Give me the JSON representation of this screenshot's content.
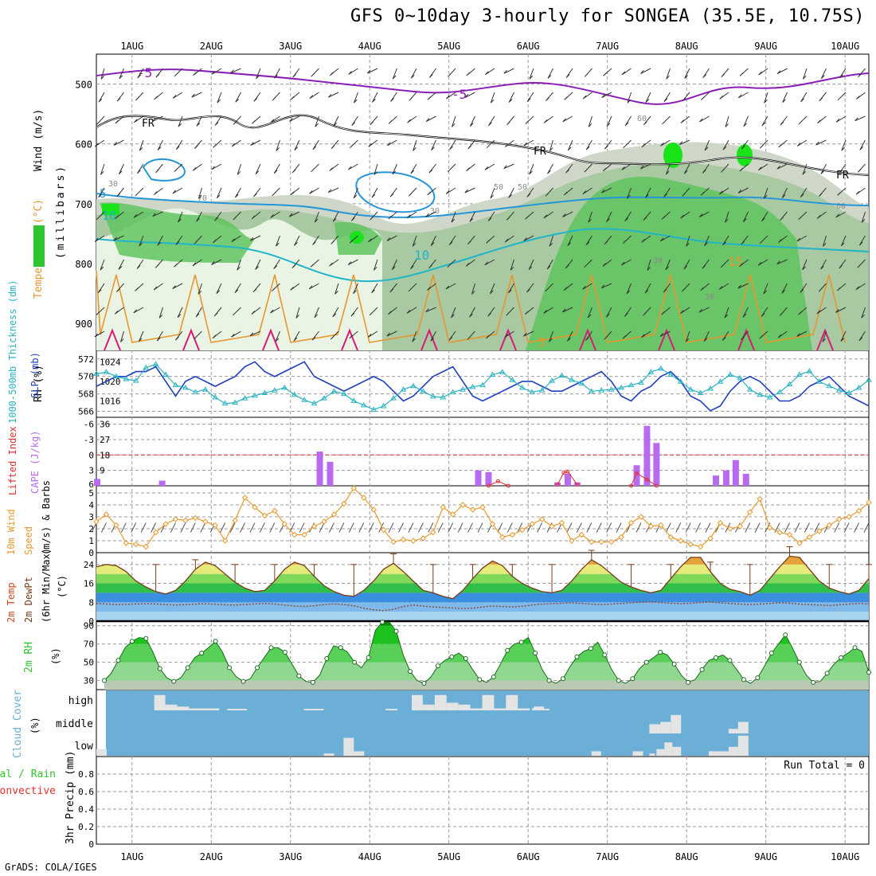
{
  "title": "GFS 0~10day 3-hourly for SONGEA (35.5E, 10.75S)",
  "credit": "GrADS: COLA/IGES",
  "colors": {
    "grid": "#9a9a9a",
    "slp": "#1f3fbf",
    "thickness": "#2ab3c2",
    "cape": "#b86bf0",
    "lifted_index": "#e23030",
    "wind_speed": "#e89a30",
    "rh_fill": "#31c431",
    "cloud_bg": "#6baed6",
    "cloud_bar": "#e4e4e4",
    "freezing": "#000000",
    "temp_purple": "#8a1fb8",
    "temp_blue": "#2596d8",
    "temp_cyan": "#20b5c9",
    "temp_orange": "#e8962e",
    "temp_magenta": "#d81b7a"
  },
  "chart_data": {
    "type": "meteogram",
    "x_range_days": [
      0.55,
      10.3
    ],
    "x_tick_labels": [
      "1AUG",
      "2AUG",
      "3AUG",
      "4AUG",
      "5AUG",
      "6AUG",
      "7AUG",
      "8AUG",
      "9AUG",
      "10AUG"
    ],
    "x_tick_days": [
      1,
      2,
      3,
      4,
      5,
      6,
      7,
      8,
      9,
      10
    ],
    "panels": {
      "upper_air": {
        "ylabel_parts": [
          "RH (%)",
          "Temperature (°C)",
          "Wind (m/s)"
        ],
        "ylabel_units": "(millibars)",
        "y_ticks": [
          500,
          600,
          700,
          800,
          900
        ],
        "y_range": [
          450,
          945
        ],
        "contour_labels": [
          "-5",
          "-5",
          "FR",
          "FR",
          "FR",
          "10",
          "10",
          "5",
          "15",
          "5"
        ],
        "rh_labels": [
          "30",
          "70",
          "50",
          "30",
          "50",
          "30",
          "60",
          "30",
          "60"
        ],
        "rh_levels_percent": [
          30,
          50,
          70,
          90
        ]
      },
      "thickness_slp": {
        "ylabel_left": "1000-500mb Thickness (dm)",
        "ylabel_right": "SLP (mb)",
        "left_ticks": [
          566,
          568,
          570,
          572
        ],
        "right_ticks": [
          1016,
          1020,
          1024
        ],
        "thickness_range": [
          565.5,
          572.8
        ],
        "slp_range": [
          1013,
          1026
        ],
        "thickness": [
          570.3,
          570.5,
          570.0,
          569.7,
          569.5,
          571.0,
          571.4,
          570.2,
          569.0,
          568.7,
          568.2,
          568.5,
          567.6,
          566.9,
          567.0,
          567.5,
          567.8,
          568.1,
          568.4,
          568.7,
          567.9,
          567.3,
          566.9,
          567.5,
          568.3,
          568.0,
          567.2,
          566.7,
          566.2,
          566.6,
          567.5,
          568.5,
          568.9,
          568.3,
          567.7,
          567.6,
          568.2,
          568.5,
          568.8,
          569.0,
          570.2,
          570.5,
          569.6,
          568.7,
          568.2,
          568.4,
          569.5,
          570.1,
          569.6,
          569.2,
          568.3,
          568.4,
          568.5,
          568.7,
          569.0,
          569.3,
          570.5,
          570.9,
          570.2,
          569.4,
          568.5,
          568.1,
          568.6,
          569.4,
          570.2,
          569.8,
          568.5,
          567.9,
          567.6,
          568.2,
          569.1,
          570.2,
          570.6,
          569.4,
          568.9,
          568.4,
          568.1,
          568.7,
          569.6,
          570.4,
          570.8,
          569.7,
          568.8,
          568.6,
          569.2,
          570.0,
          570.4,
          569.6,
          569.2,
          568.5
        ],
        "slp": [
          1019,
          1020,
          1021,
          1021,
          1022,
          1022,
          1023,
          1020,
          1017,
          1020,
          1021,
          1020,
          1019,
          1020,
          1021,
          1023,
          1024,
          1022,
          1021,
          1022,
          1023,
          1024,
          1021,
          1020,
          1019,
          1018,
          1019,
          1020,
          1021,
          1020,
          1018,
          1016,
          1017,
          1019,
          1021,
          1022,
          1023,
          1020,
          1017,
          1016,
          1017,
          1018,
          1019,
          1020,
          1020,
          1019,
          1018,
          1018,
          1019,
          1020,
          1021,
          1022,
          1020,
          1017,
          1016,
          1018,
          1019,
          1021,
          1022,
          1020,
          1017,
          1016,
          1014,
          1015,
          1018,
          1020,
          1021,
          1020,
          1018,
          1016,
          1016,
          1017,
          1019,
          1020,
          1021,
          1019,
          1017,
          1016,
          1015,
          1017,
          1019,
          1020,
          1021,
          1020,
          1018,
          1016,
          1017,
          1019,
          1020,
          1021
        ]
      },
      "cape_li": {
        "ylabel_left": "Lifted Index",
        "ylabel_right": "CAPE (J/kg)",
        "left_ticks": [
          6,
          3,
          0,
          -3,
          -6
        ],
        "right_ticks": [
          9,
          18,
          27,
          36
        ],
        "cape_range": [
          0,
          40
        ],
        "zero_li_cape_equiv": 18,
        "cape_bars": [
          {
            "day": 0.56,
            "value": 4
          },
          {
            "day": 1.38,
            "value": 3
          },
          {
            "day": 3.37,
            "value": 20
          },
          {
            "day": 3.5,
            "value": 14
          },
          {
            "day": 5.37,
            "value": 9
          },
          {
            "day": 5.5,
            "value": 8
          },
          {
            "day": 6.37,
            "value": 2
          },
          {
            "day": 6.5,
            "value": 7
          },
          {
            "day": 6.62,
            "value": 2
          },
          {
            "day": 7.37,
            "value": 12
          },
          {
            "day": 7.5,
            "value": 35
          },
          {
            "day": 7.62,
            "value": 25
          },
          {
            "day": 8.37,
            "value": 6
          },
          {
            "day": 8.5,
            "value": 9
          },
          {
            "day": 8.62,
            "value": 15
          },
          {
            "day": 8.75,
            "value": 7
          }
        ],
        "li_values": [
          {
            "day": 5.5,
            "value": 6.0
          },
          {
            "day": 5.62,
            "value": 5.2
          },
          {
            "day": 5.75,
            "value": 6.0
          },
          {
            "day": 6.37,
            "value": 5.8
          },
          {
            "day": 6.45,
            "value": 3.7
          },
          {
            "day": 6.5,
            "value": 3.5
          },
          {
            "day": 6.62,
            "value": 5.8
          },
          {
            "day": 7.3,
            "value": 6.0
          },
          {
            "day": 7.37,
            "value": 3.8
          },
          {
            "day": 7.5,
            "value": 4.9
          },
          {
            "day": 7.62,
            "value": 6.0
          }
        ]
      },
      "wind10m": {
        "ylabel": "10m Wind Speed (m/s) & Barbs",
        "ylabel_parts": [
          "10m Wind",
          "Speed",
          "(m/s) & Barbs"
        ],
        "y_ticks": [
          0,
          1,
          2,
          3,
          4,
          5
        ],
        "y_range": [
          0,
          5.6
        ],
        "speed": [
          2.6,
          3.2,
          2.3,
          0.8,
          0.7,
          0.5,
          1.7,
          2.4,
          2.8,
          2.7,
          2.9,
          2.6,
          2.3,
          1.0,
          2.7,
          4.6,
          3.8,
          3.1,
          3.5,
          2.4,
          1.5,
          1.5,
          2.2,
          2.6,
          3.2,
          4.1,
          5.4,
          4.6,
          3.6,
          1.9,
          0.9,
          1.1,
          1.0,
          1.2,
          1.7,
          3.8,
          3.2,
          4.0,
          3.6,
          3.8,
          2.4,
          1.3,
          1.5,
          1.9,
          2.4,
          2.8,
          2.2,
          2.5,
          1.0,
          1.5,
          0.9,
          0.9,
          0.9,
          1.3,
          2.5,
          3.0,
          2.2,
          2.3,
          1.3,
          1.0,
          0.7,
          0.5,
          1.2,
          2.5,
          2.0,
          2.2,
          3.4,
          4.5,
          2.1,
          1.7,
          1.5,
          0.8,
          1.3,
          1.8,
          2.3,
          2.8,
          3.0,
          3.5,
          4.2,
          3.0,
          2.2,
          1.6,
          1.4,
          2.0,
          1.9,
          2.2,
          1.6,
          1.9,
          2.2,
          2.3,
          2.5
        ]
      },
      "temp2m": {
        "ylabel_parts": [
          "2m Temp",
          "2m DewPt",
          "(6hr Min/Max)"
        ],
        "ylabel_units": "(°C)",
        "y_ticks": [
          0,
          8,
          16,
          24
        ],
        "y_range": [
          0,
          29
        ],
        "temp": [
          23,
          24,
          23.5,
          21,
          17,
          14.5,
          12.5,
          11.5,
          13,
          17,
          22,
          25,
          23.5,
          20,
          16.5,
          14,
          12.5,
          13,
          17,
          22,
          25,
          23.5,
          19,
          15,
          12.5,
          11,
          10.5,
          13,
          17,
          22,
          24.5,
          21,
          17,
          13,
          12,
          10.5,
          9.5,
          13,
          18,
          22.5,
          25.5,
          23.5,
          19,
          16,
          14,
          12.5,
          12,
          13,
          17,
          22,
          26,
          23.5,
          20,
          16.5,
          14.5,
          13,
          12,
          13,
          18,
          23,
          27,
          27,
          21,
          16,
          13.5,
          12.5,
          11,
          13,
          18,
          23,
          27.5,
          27,
          22,
          17,
          14,
          12.5,
          11.5,
          13,
          18,
          22.5,
          26,
          24,
          19.5,
          15.5,
          13.5,
          12,
          11,
          14.5,
          19.5,
          24.5,
          27,
          25.5,
          21,
          16.5,
          14,
          12.5,
          11,
          14,
          17
        ],
        "dewpoint": [
          7.5,
          7.3,
          7.0,
          7.1,
          7.3,
          7.4,
          7.3,
          7.0,
          6.8,
          7.0,
          7.2,
          7.4,
          7.1,
          6.9,
          6.8,
          7.0,
          7.3,
          7.5,
          7.2,
          6.8,
          6.4,
          6.2,
          6.5,
          7.0,
          7.3,
          7.0,
          6.5,
          5.5,
          4.8,
          4.5,
          5.0,
          6.2,
          6.8,
          6.4,
          6.0,
          5.8,
          5.6,
          5.4,
          5.5,
          6.0,
          6.4,
          6.2,
          6.0,
          6.3,
          6.8,
          7.2,
          7.4,
          7.6,
          7.8,
          7.5,
          7.2,
          7.0,
          7.2,
          7.5,
          7.8,
          8.0,
          8.2,
          7.9,
          7.6,
          7.4,
          7.6,
          7.9,
          8.1,
          7.8,
          7.5,
          7.2,
          7.0,
          7.2,
          7.5,
          7.8,
          7.6,
          7.2,
          7.0,
          6.8,
          6.6,
          6.9,
          7.2,
          7.5,
          7.3,
          7.0,
          6.6,
          6.4,
          6.2,
          6.4,
          6.8,
          7.1,
          7.3,
          7.0,
          6.6,
          6.2,
          6.0,
          6.3,
          6.6,
          6.0
        ]
      },
      "rh2m": {
        "ylabel": "2m RH",
        "ylabel_units": "(%)",
        "y_ticks": [
          30,
          50,
          70,
          90
        ],
        "y_range": [
          20,
          95
        ],
        "rh": [
          30,
          38,
          52,
          66,
          73,
          77,
          76,
          61,
          43,
          33,
          29,
          33,
          44,
          55,
          60,
          66,
          73,
          61,
          44,
          34,
          29,
          32,
          44,
          55,
          66,
          66,
          61,
          48,
          35,
          29,
          28,
          36,
          54,
          68,
          66,
          61,
          50,
          44,
          55,
          85,
          94,
          94,
          84,
          58,
          40,
          30,
          27,
          34,
          46,
          52,
          56,
          60,
          54,
          42,
          31,
          28,
          34,
          48,
          63,
          70,
          72,
          77,
          60,
          42,
          30,
          27,
          32,
          45,
          56,
          62,
          65,
          72,
          58,
          42,
          30,
          27,
          32,
          43,
          50,
          55,
          61,
          58,
          48,
          36,
          28,
          31,
          42,
          52,
          55,
          58,
          52,
          42,
          31,
          27,
          33,
          46,
          60,
          70,
          80,
          66,
          50,
          36,
          28,
          29,
          38,
          48,
          55,
          60,
          66,
          62,
          39
        ],
        "fill_levels": [
          30,
          50,
          70,
          90
        ]
      },
      "cloud": {
        "ylabel": "Cloud Cover",
        "ylabel_units": "(%)",
        "row_labels": [
          "high",
          "middle",
          "low"
        ],
        "high": [
          {
            "d0": 1.28,
            "d1": 1.42,
            "v": 80
          },
          {
            "d0": 1.42,
            "d1": 1.57,
            "v": 30
          },
          {
            "d0": 1.57,
            "d1": 1.72,
            "v": 20
          },
          {
            "d0": 1.72,
            "d1": 2.1,
            "v": 10
          },
          {
            "d0": 2.2,
            "d1": 2.45,
            "v": 8
          },
          {
            "d0": 3.17,
            "d1": 3.42,
            "v": 8
          },
          {
            "d0": 4.2,
            "d1": 4.35,
            "v": 8
          },
          {
            "d0": 4.53,
            "d1": 4.67,
            "v": 80
          },
          {
            "d0": 4.67,
            "d1": 4.82,
            "v": 30
          },
          {
            "d0": 4.82,
            "d1": 4.97,
            "v": 80
          },
          {
            "d0": 4.97,
            "d1": 5.12,
            "v": 40
          },
          {
            "d0": 5.12,
            "d1": 5.27,
            "v": 30
          },
          {
            "d0": 5.27,
            "d1": 5.42,
            "v": 10
          },
          {
            "d0": 5.42,
            "d1": 5.57,
            "v": 80
          },
          {
            "d0": 5.57,
            "d1": 5.72,
            "v": 10
          },
          {
            "d0": 5.72,
            "d1": 5.87,
            "v": 80
          },
          {
            "d0": 5.87,
            "d1": 6.02,
            "v": 10
          },
          {
            "d0": 6.05,
            "d1": 6.17,
            "v": 10
          },
          {
            "d0": 6.05,
            "d1": 6.1,
            "v": 10
          },
          {
            "d0": 6.07,
            "d1": 6.2,
            "v": 20
          },
          {
            "d0": 6.2,
            "d1": 6.27,
            "v": 8
          }
        ],
        "middle": [
          {
            "d0": 7.53,
            "d1": 7.67,
            "v": 40
          },
          {
            "d0": 7.67,
            "d1": 7.8,
            "v": 50
          },
          {
            "d0": 7.8,
            "d1": 7.93,
            "v": 80
          },
          {
            "d0": 8.53,
            "d1": 8.65,
            "v": 20
          },
          {
            "d0": 8.65,
            "d1": 8.78,
            "v": 50
          }
        ],
        "low": [
          {
            "d0": 0.55,
            "d1": 0.68,
            "v": 30
          },
          {
            "d0": 3.42,
            "d1": 3.55,
            "v": 10
          },
          {
            "d0": 3.67,
            "d1": 3.8,
            "v": 80
          },
          {
            "d0": 3.8,
            "d1": 3.93,
            "v": 20
          },
          {
            "d0": 6.8,
            "d1": 6.92,
            "v": 20
          },
          {
            "d0": 7.32,
            "d1": 7.45,
            "v": 20
          },
          {
            "d0": 7.53,
            "d1": 7.6,
            "v": 10
          },
          {
            "d0": 7.62,
            "d1": 7.72,
            "v": 30
          },
          {
            "d0": 7.72,
            "d1": 7.82,
            "v": 60
          },
          {
            "d0": 7.82,
            "d1": 7.93,
            "v": 40
          },
          {
            "d0": 8.28,
            "d1": 8.4,
            "v": 20
          },
          {
            "d0": 8.4,
            "d1": 8.53,
            "v": 20
          },
          {
            "d0": 8.53,
            "d1": 8.65,
            "v": 40
          },
          {
            "d0": 8.65,
            "d1": 8.78,
            "v": 90
          }
        ]
      },
      "precip": {
        "ylabel_left": [
          "Total / Rain",
          "Convective"
        ],
        "ylabel": "3hr Precip (mm)",
        "y_ticks": [
          0,
          0.2,
          0.4,
          0.6,
          0.8
        ],
        "y_tick_labels": [
          "0",
          "0.2",
          "0.4",
          "0.6",
          "0.8"
        ],
        "y_range": [
          0,
          1.0
        ],
        "run_total_label": "Run Total = 0",
        "values": []
      }
    }
  }
}
